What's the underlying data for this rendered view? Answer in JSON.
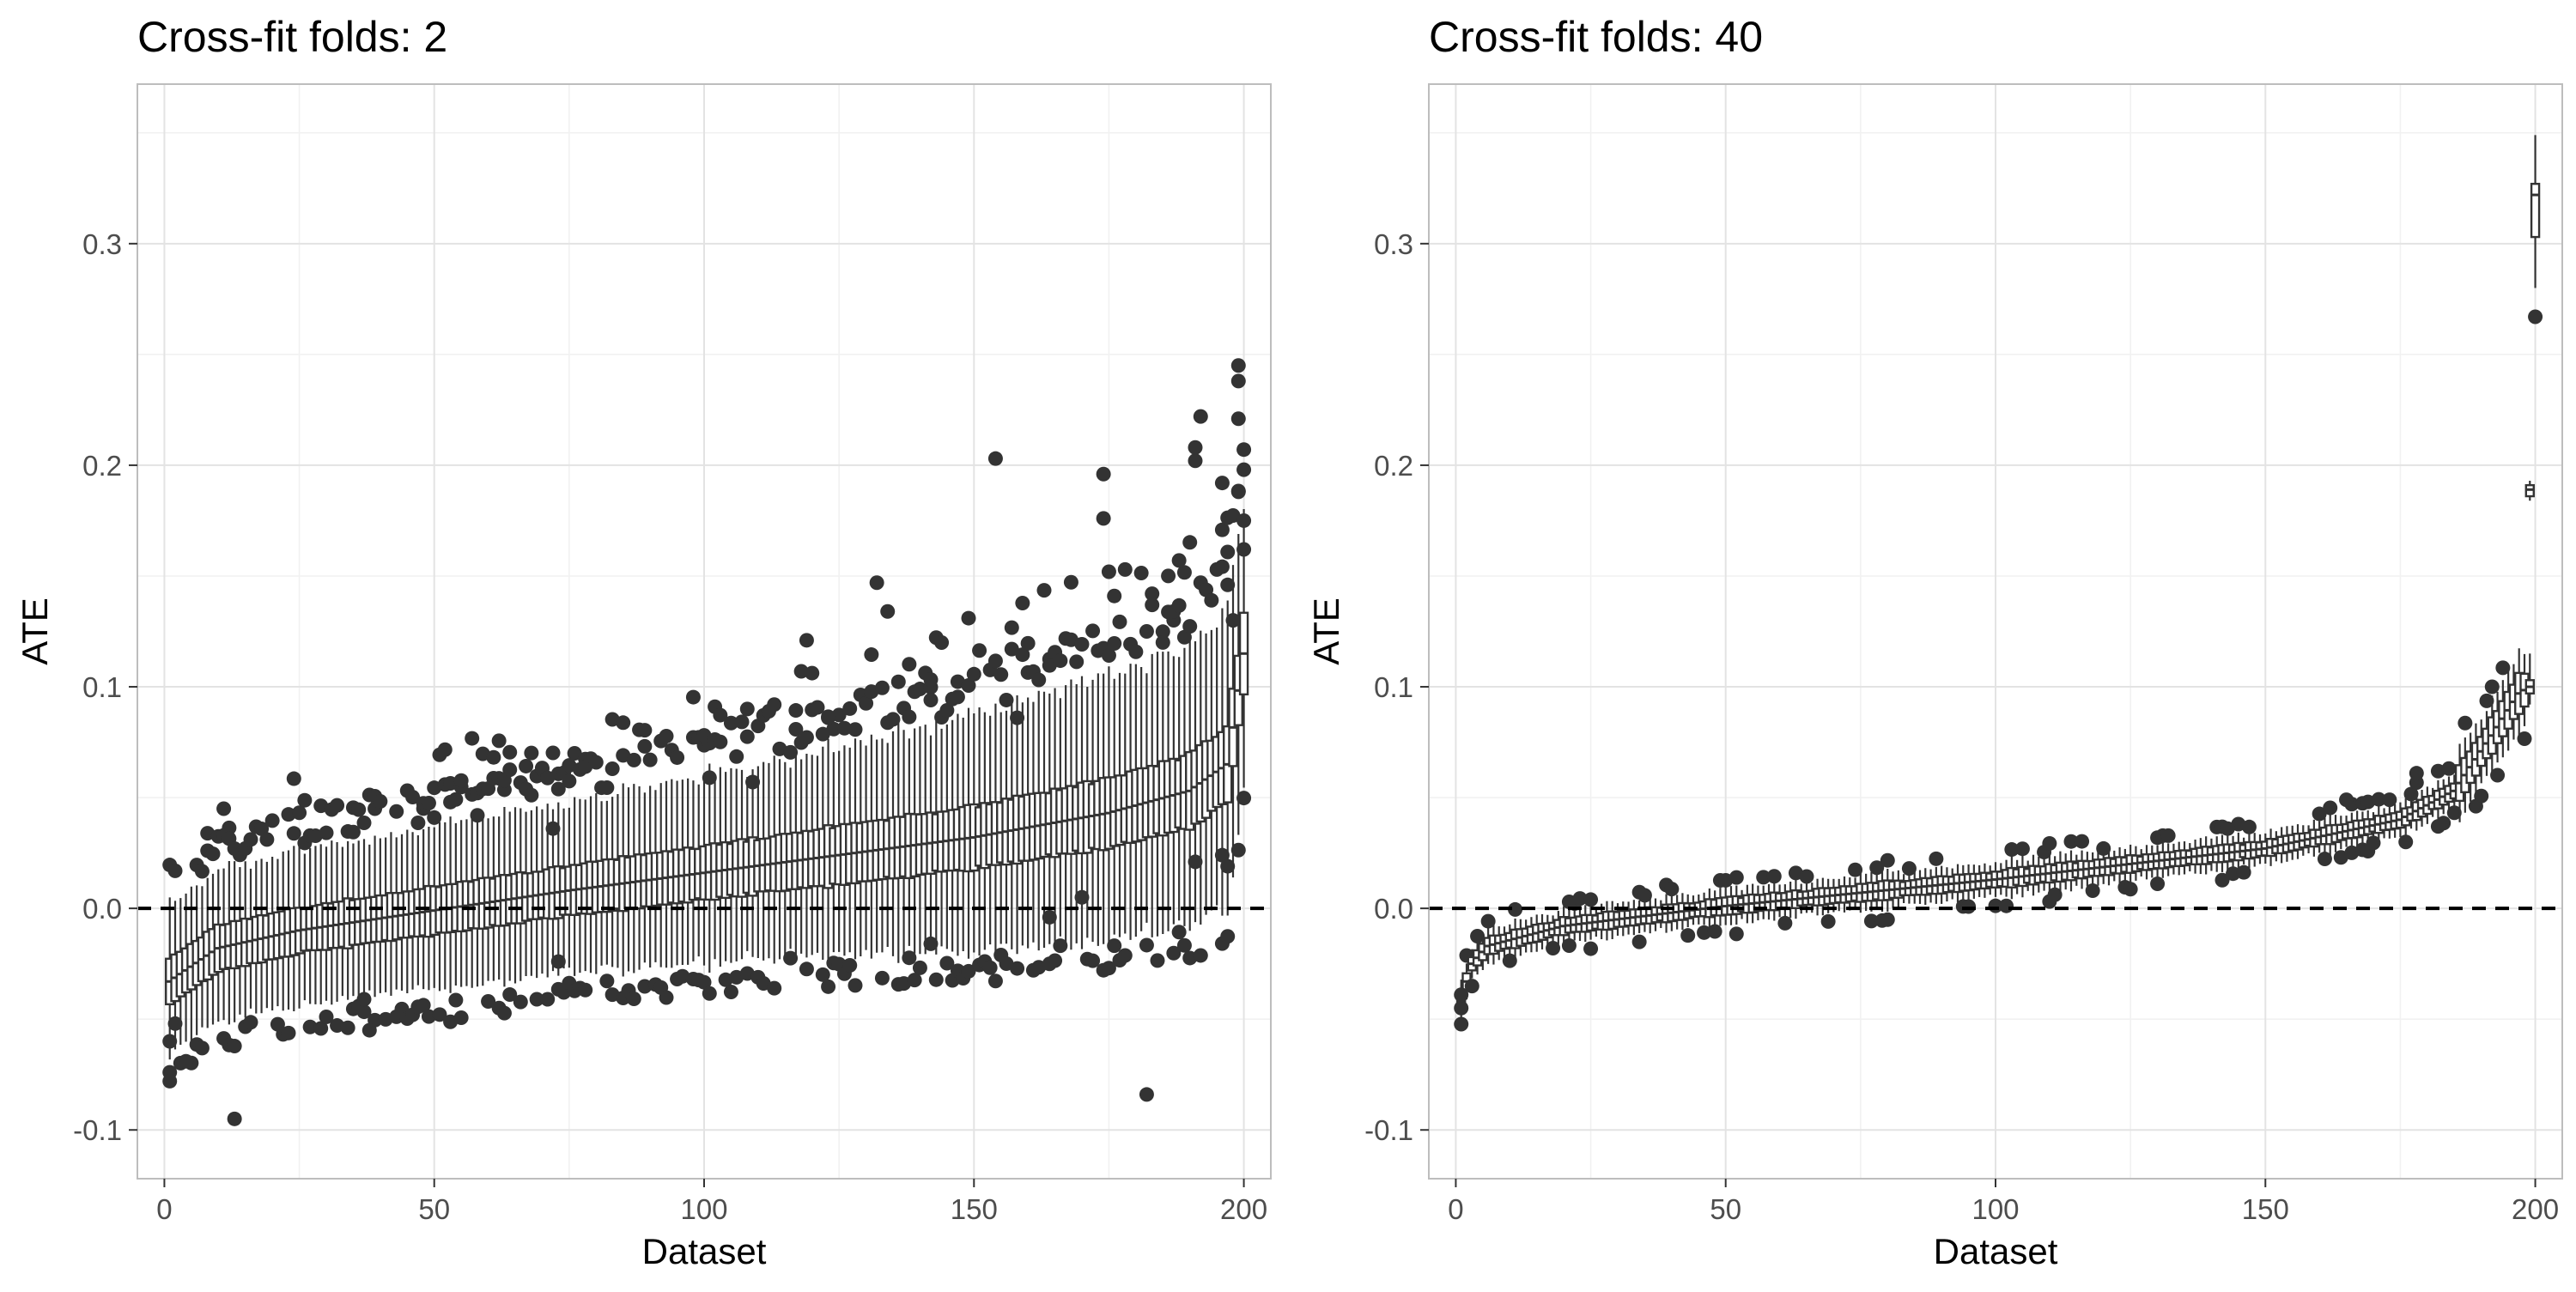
{
  "colors": {
    "point": "#333333",
    "grid_major": "#e3e3e3",
    "grid_minor": "#f1f1f1",
    "panel_border": "#bdbdbd",
    "zero_line": "#000000"
  },
  "chart_data": [
    {
      "type": "box",
      "title": "Cross-fit folds: 2",
      "xlabel": "Dataset",
      "ylabel": "ATE",
      "xlim": [
        -5,
        205
      ],
      "ylim": [
        -0.122,
        0.372
      ],
      "x_ticks": [
        0,
        50,
        100,
        150,
        200
      ],
      "y_ticks": [
        -0.1,
        0.0,
        0.1,
        0.2,
        0.3
      ],
      "x_tick_labels": [
        "0",
        "50",
        "100",
        "150",
        "200"
      ],
      "y_tick_labels": [
        "-0.1",
        "0.0",
        "0.1",
        "0.2",
        "0.3"
      ],
      "grid": true,
      "reference_line": {
        "y": 0,
        "style": "dashed"
      },
      "n_datasets": 200,
      "median_curve": [
        [
          1,
          -0.033
        ],
        [
          10,
          -0.018
        ],
        [
          25,
          -0.01
        ],
        [
          50,
          -0.001
        ],
        [
          75,
          0.008
        ],
        [
          100,
          0.016
        ],
        [
          125,
          0.024
        ],
        [
          150,
          0.032
        ],
        [
          175,
          0.043
        ],
        [
          190,
          0.053
        ],
        [
          197,
          0.065
        ],
        [
          200,
          0.115
        ]
      ],
      "box_half_width": 0.012,
      "whisker_half_width": 0.03,
      "outliers": [
        {
          "x": 1,
          "y": -0.06
        },
        {
          "x": 1,
          "y": -0.074
        },
        {
          "x": 1,
          "y": -0.078
        },
        {
          "x": 2,
          "y": -0.052
        },
        {
          "x": 4,
          "y": -0.069
        },
        {
          "x": 13,
          "y": -0.095
        },
        {
          "x": 38,
          "y": -0.055
        },
        {
          "x": 37,
          "y": -0.041
        },
        {
          "x": 73,
          "y": -0.024
        },
        {
          "x": 142,
          "y": -0.016
        },
        {
          "x": 182,
          "y": -0.084
        },
        {
          "x": 58,
          "y": 0.042
        },
        {
          "x": 72,
          "y": 0.036
        },
        {
          "x": 101,
          "y": 0.059
        },
        {
          "x": 109,
          "y": 0.057
        },
        {
          "x": 119,
          "y": 0.121
        },
        {
          "x": 123,
          "y": 0.086
        },
        {
          "x": 132,
          "y": 0.147
        },
        {
          "x": 134,
          "y": 0.134
        },
        {
          "x": 142,
          "y": 0.094
        },
        {
          "x": 154,
          "y": 0.203
        },
        {
          "x": 158,
          "y": 0.086
        },
        {
          "x": 174,
          "y": 0.196
        },
        {
          "x": 174,
          "y": 0.176
        },
        {
          "x": 176,
          "y": 0.141
        },
        {
          "x": 183,
          "y": 0.142
        },
        {
          "x": 185,
          "y": 0.12
        },
        {
          "x": 188,
          "y": 0.157
        },
        {
          "x": 191,
          "y": 0.208
        },
        {
          "x": 191,
          "y": 0.202
        },
        {
          "x": 192,
          "y": 0.222
        },
        {
          "x": 196,
          "y": 0.192
        },
        {
          "x": 197,
          "y": 0.146
        },
        {
          "x": 198,
          "y": 0.13
        },
        {
          "x": 199,
          "y": 0.245
        },
        {
          "x": 199,
          "y": 0.238
        },
        {
          "x": 199,
          "y": 0.221
        },
        {
          "x": 200,
          "y": 0.198
        },
        {
          "x": 200,
          "y": 0.175
        },
        {
          "x": 200,
          "y": 0.162
        },
        {
          "x": 191,
          "y": 0.021
        },
        {
          "x": 196,
          "y": 0.024
        },
        {
          "x": 197,
          "y": 0.019
        },
        {
          "x": 170,
          "y": 0.005
        },
        {
          "x": 164,
          "y": -0.004
        }
      ]
    },
    {
      "type": "box",
      "title": "Cross-fit folds: 40",
      "xlabel": "Dataset",
      "ylabel": "ATE",
      "xlim": [
        -5,
        205
      ],
      "ylim": [
        -0.122,
        0.372
      ],
      "x_ticks": [
        0,
        50,
        100,
        150,
        200
      ],
      "y_ticks": [
        -0.1,
        0.0,
        0.1,
        0.2,
        0.3
      ],
      "x_tick_labels": [
        "0",
        "50",
        "100",
        "150",
        "200"
      ],
      "y_tick_labels": [
        "-0.1",
        "0.0",
        "0.1",
        "0.2",
        "0.3"
      ],
      "grid": true,
      "reference_line": {
        "y": 0,
        "style": "dashed"
      },
      "n_datasets": 200,
      "median_curve": [
        [
          1,
          -0.041
        ],
        [
          3,
          -0.025
        ],
        [
          6,
          -0.017
        ],
        [
          20,
          -0.008
        ],
        [
          50,
          0.001
        ],
        [
          75,
          0.007
        ],
        [
          100,
          0.013
        ],
        [
          125,
          0.02
        ],
        [
          150,
          0.027
        ],
        [
          175,
          0.04
        ],
        [
          185,
          0.053
        ],
        [
          192,
          0.078
        ],
        [
          197,
          0.097
        ],
        [
          199,
          0.1
        ],
        [
          200,
          0.322
        ]
      ],
      "spread": 0.0035,
      "special_boxes": [
        {
          "x": 200,
          "q1": 0.303,
          "median": 0.322,
          "q3": 0.327,
          "whisker_low": 0.28,
          "whisker_high": 0.349,
          "outliers": [
            0.267
          ]
        },
        {
          "x": 199,
          "q1": 0.186,
          "median": 0.189,
          "q3": 0.191,
          "whisker_low": 0.184,
          "whisker_high": 0.193,
          "outliers": []
        },
        {
          "x": 199,
          "q1": 0.097,
          "median": 0.1,
          "q3": 0.103,
          "whisker_low": 0.092,
          "whisker_high": 0.115,
          "outliers": []
        }
      ],
      "outliers": [
        {
          "x": 1,
          "y": -0.045
        },
        {
          "x": 1,
          "y": -0.039
        },
        {
          "x": 84,
          "y": 0.018
        },
        {
          "x": 120,
          "y": 0.027
        },
        {
          "x": 143,
          "y": 0.036
        },
        {
          "x": 165,
          "y": 0.049
        },
        {
          "x": 178,
          "y": 0.061
        },
        {
          "x": 192,
          "y": 0.1
        }
      ]
    }
  ]
}
